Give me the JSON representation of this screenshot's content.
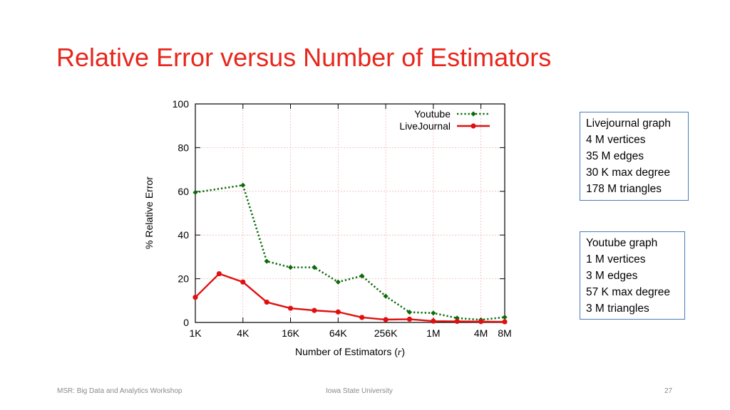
{
  "slide": {
    "title": "Relative Error versus Number of Estimators",
    "footer_left": "MSR: Big Data and Analytics Workshop",
    "footer_center": "Iowa State University",
    "page_number": "27"
  },
  "chart_data": {
    "type": "line",
    "xlabel": "Number of Estimators (",
    "xlabel_var": "r",
    "xlabel_end": ")",
    "ylabel": "% Relative Error",
    "ylim": [
      0,
      100
    ],
    "xlim_log2": [
      10,
      23
    ],
    "x_scale": "log",
    "y_ticks": [
      0,
      20,
      40,
      60,
      80,
      100
    ],
    "x_ticks": [
      {
        "label": "1K",
        "log2": 10
      },
      {
        "label": "4K",
        "log2": 12
      },
      {
        "label": "16K",
        "log2": 14
      },
      {
        "label": "64K",
        "log2": 16
      },
      {
        "label": "256K",
        "log2": 18
      },
      {
        "label": "1M",
        "log2": 20
      },
      {
        "label": "4M",
        "log2": 22
      },
      {
        "label": "8M",
        "log2": 23
      }
    ],
    "grid": true,
    "legend_position": "top-right",
    "series": [
      {
        "name": "Youtube",
        "color": "#0b6b0b",
        "style": "dotted",
        "marker": "diamond",
        "log2_x": [
          10,
          12,
          13,
          14,
          15,
          16,
          17,
          18,
          19,
          20,
          21,
          22,
          23
        ],
        "values": [
          59.5,
          62.8,
          28.0,
          25.2,
          25.2,
          18.5,
          21.3,
          12.0,
          4.7,
          4.3,
          2.0,
          1.2,
          2.4
        ]
      },
      {
        "name": "LiveJournal",
        "color": "#e01010",
        "style": "solid",
        "marker": "circle",
        "log2_x": [
          10,
          11,
          12,
          13,
          14,
          15,
          16,
          17,
          18,
          19,
          20,
          21,
          22,
          23
        ],
        "values": [
          11.5,
          22.3,
          18.5,
          9.3,
          6.5,
          5.5,
          4.8,
          2.3,
          1.3,
          1.5,
          0.6,
          0.5,
          0.4,
          0.3
        ]
      }
    ]
  },
  "info_boxes": {
    "livejournal": [
      "Livejournal graph",
      "4 M vertices",
      "35 M edges",
      "30 K max degree",
      "178 M triangles"
    ],
    "youtube": [
      "Youtube graph",
      "1 M vertices",
      "3 M edges",
      "57 K max degree",
      "3 M triangles"
    ]
  }
}
